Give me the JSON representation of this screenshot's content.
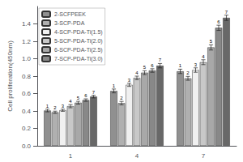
{
  "chart_data": {
    "type": "bar",
    "categories": [
      "1",
      "4",
      "7"
    ],
    "series": [
      {
        "name": "2-SCFPEEK",
        "color": "#909090",
        "values": [
          0.405,
          0.63,
          0.855
        ],
        "errors": [
          0.015,
          0.022,
          0.025
        ]
      },
      {
        "name": "3-SCP-PDA",
        "color": "#b0b0b0",
        "values": [
          0.385,
          0.49,
          0.775
        ],
        "errors": [
          0.013,
          0.02,
          0.022
        ]
      },
      {
        "name": "4-SCP-PDA-Ti(1.5)",
        "color": "#f0f0f0",
        "values": [
          0.408,
          0.7,
          0.87
        ],
        "errors": [
          0.012,
          0.018,
          0.025
        ]
      },
      {
        "name": "5-SCP-PDA-Ti(2.0)",
        "color": "#c8c8c8",
        "values": [
          0.455,
          0.78,
          0.96
        ],
        "errors": [
          0.018,
          0.02,
          0.028
        ]
      },
      {
        "name": "6-SCP-PDA-Ti(2.5)",
        "color": "#a8a8a8",
        "values": [
          0.495,
          0.84,
          1.13
        ],
        "errors": [
          0.016,
          0.022,
          0.03
        ]
      },
      {
        "name": "7-SCP-PDA-Ti(3.0)",
        "color": "#888888",
        "values": [
          0.525,
          0.865,
          1.355
        ],
        "errors": [
          0.014,
          0.02,
          0.03
        ]
      },
      {
        "color": "#686868",
        "values": [
          0.565,
          0.92,
          1.47
        ],
        "errors": [
          0.015,
          0.025,
          0.03
        ]
      }
    ],
    "annotations": [
      "1",
      "2",
      "3",
      "4",
      "5",
      "6",
      "7"
    ],
    "ylabel": "Cell proliferation(450nm)",
    "ylim": [
      0.0,
      1.6
    ],
    "yticks": [
      {
        "value": 0.0,
        "label": "0.0"
      },
      {
        "value": 0.2,
        "label": "0.2"
      },
      {
        "value": 0.4,
        "label": "0.4"
      },
      {
        "value": 0.6,
        "label": "0.6"
      },
      {
        "value": 0.8,
        "label": "0.8"
      },
      {
        "value": 1.0,
        "label": "1.0"
      },
      {
        "value": 1.2,
        "label": "1.2"
      },
      {
        "value": 1.4,
        "label": "1.4"
      }
    ],
    "grid": false,
    "legend": "upper left"
  }
}
